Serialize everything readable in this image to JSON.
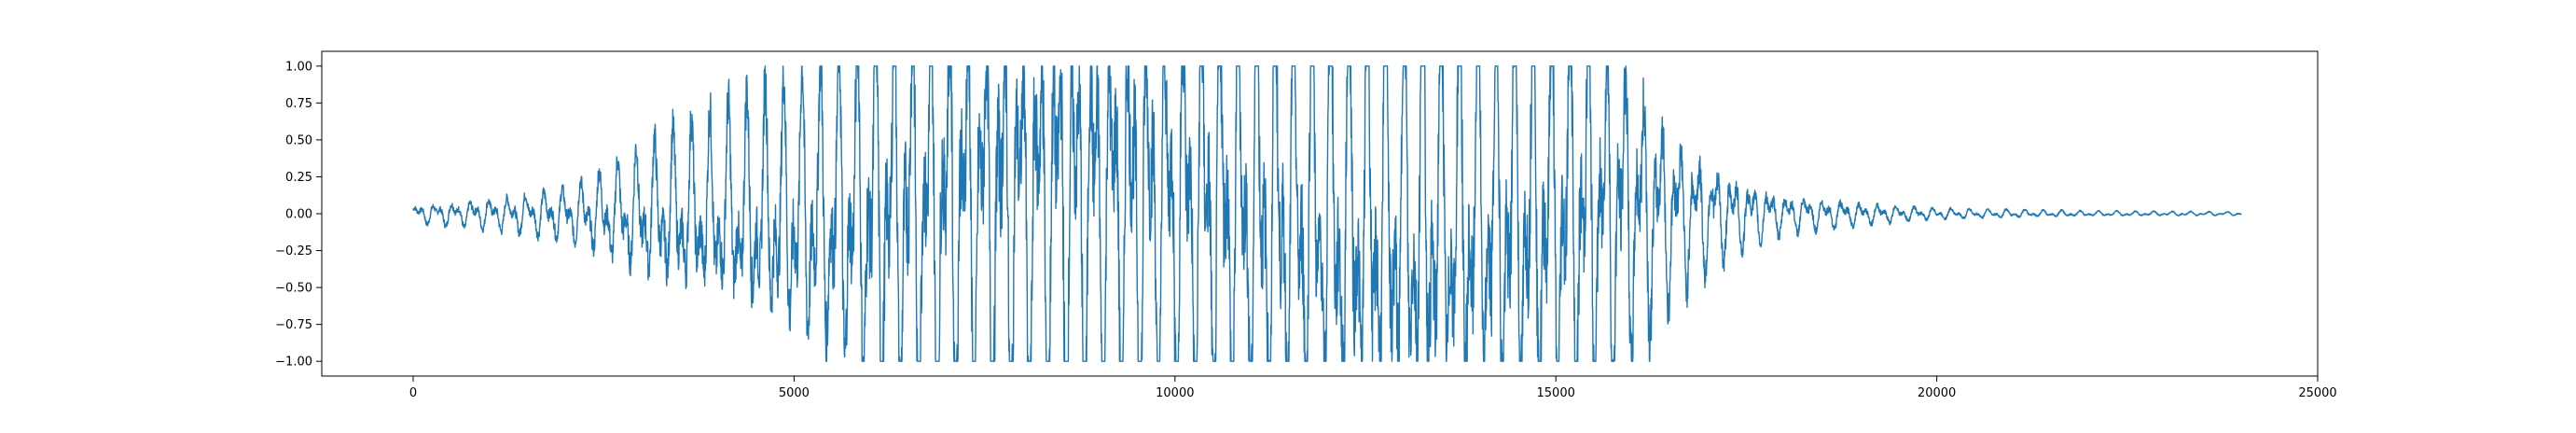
{
  "chart_data": {
    "type": "line",
    "title": "",
    "xlabel": "",
    "ylabel": "",
    "xlim": [
      -1200,
      25000
    ],
    "ylim": [
      -1.1,
      1.1
    ],
    "x_ticks": [
      0,
      5000,
      10000,
      15000,
      20000,
      25000
    ],
    "x_tick_labels": [
      "0",
      "5000",
      "10000",
      "15000",
      "20000",
      "25000"
    ],
    "y_ticks": [
      -1.0,
      -0.75,
      -0.5,
      -0.25,
      0.0,
      0.25,
      0.5,
      0.75,
      1.0
    ],
    "y_tick_labels": [
      "−1.00",
      "−0.75",
      "−0.50",
      "−0.25",
      "0.00",
      "0.25",
      "0.50",
      "0.75",
      "1.00"
    ],
    "grid": false,
    "legend": "none",
    "series": [
      {
        "color": "#1f77b4",
        "x_start": 0,
        "x_end": 24000,
        "envelope": {
          "x": [
            0,
            1000,
            2000,
            2500,
            3000,
            4000,
            5000,
            5500,
            6000,
            6500,
            7000,
            9000,
            11000,
            13000,
            14000,
            15000,
            15500,
            16000,
            16500,
            17000,
            17500,
            18000,
            19000,
            20000,
            22000,
            24000
          ],
          "amplitude": [
            0.04,
            0.07,
            0.12,
            0.2,
            0.3,
            0.45,
            0.62,
            0.72,
            0.9,
            0.98,
            1.0,
            1.0,
            1.0,
            1.0,
            1.0,
            1.0,
            0.95,
            0.7,
            0.4,
            0.25,
            0.15,
            0.09,
            0.05,
            0.025,
            0.012,
            0.008
          ]
        },
        "clip": [
          -1.0,
          1.0
        ]
      }
    ]
  }
}
